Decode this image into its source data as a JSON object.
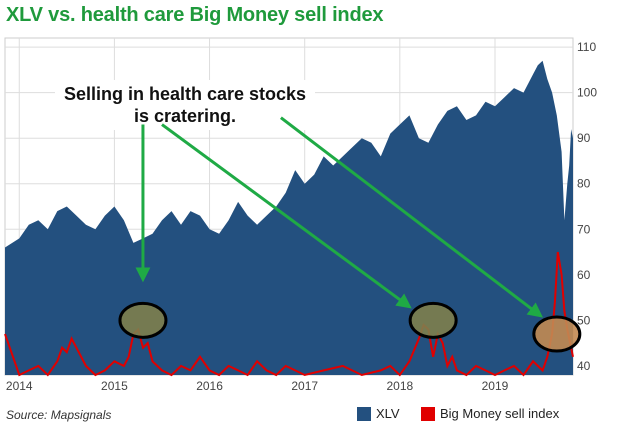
{
  "chart_data": {
    "type": "area",
    "title": "XLV vs. health care Big Money sell index",
    "source": "Source: Mapsignals",
    "annotation": "Selling in health care stocks is cratering.",
    "annotation_lines": [
      "Selling in health care stocks",
      "is cratering."
    ],
    "x_range": [
      2013.85,
      2019.82
    ],
    "x_ticks": [
      2014,
      2015,
      2016,
      2017,
      2018,
      2019
    ],
    "y_axis": {
      "position": "right",
      "ylim": [
        38,
        112
      ],
      "ticks": [
        40,
        50,
        60,
        70,
        80,
        90,
        100,
        110
      ]
    },
    "grid": true,
    "legend_position": "bottom-right",
    "series": [
      {
        "name": "XLV",
        "type": "area",
        "color": "#23507f",
        "x": [
          2013.85,
          2014.0,
          2014.1,
          2014.2,
          2014.3,
          2014.4,
          2014.5,
          2014.6,
          2014.7,
          2014.8,
          2014.9,
          2015.0,
          2015.1,
          2015.2,
          2015.3,
          2015.4,
          2015.5,
          2015.6,
          2015.7,
          2015.8,
          2015.9,
          2016.0,
          2016.1,
          2016.2,
          2016.3,
          2016.4,
          2016.5,
          2016.6,
          2016.7,
          2016.8,
          2016.9,
          2017.0,
          2017.1,
          2017.2,
          2017.3,
          2017.4,
          2017.5,
          2017.6,
          2017.7,
          2017.8,
          2017.9,
          2018.0,
          2018.1,
          2018.2,
          2018.3,
          2018.4,
          2018.5,
          2018.6,
          2018.7,
          2018.8,
          2018.9,
          2019.0,
          2019.1,
          2019.2,
          2019.3,
          2019.4,
          2019.45,
          2019.5,
          2019.55,
          2019.6,
          2019.65,
          2019.7,
          2019.73,
          2019.76,
          2019.78,
          2019.8,
          2019.82
        ],
        "values": [
          66,
          68,
          71,
          72,
          70,
          74,
          75,
          73,
          71,
          70,
          73,
          75,
          72,
          67,
          68,
          69,
          72,
          74,
          71,
          74,
          73,
          70,
          69,
          72,
          76,
          73,
          71,
          73,
          75,
          78,
          83,
          80,
          82,
          86,
          84,
          86,
          88,
          90,
          89,
          86,
          91,
          93,
          95,
          90,
          89,
          93,
          96,
          97,
          94,
          95,
          98,
          97,
          99,
          101,
          100,
          104,
          106,
          107,
          103,
          100,
          95,
          87,
          72,
          80,
          84,
          92,
          90
        ]
      },
      {
        "name": "Big Money sell index",
        "type": "line",
        "color": "#e00000",
        "x": [
          2013.85,
          2013.9,
          2014.0,
          2014.1,
          2014.2,
          2014.3,
          2014.4,
          2014.45,
          2014.5,
          2014.55,
          2014.6,
          2014.7,
          2014.8,
          2014.9,
          2015.0,
          2015.1,
          2015.15,
          2015.2,
          2015.25,
          2015.3,
          2015.35,
          2015.4,
          2015.5,
          2015.6,
          2015.7,
          2015.8,
          2015.9,
          2016.0,
          2016.1,
          2016.2,
          2016.3,
          2016.4,
          2016.5,
          2016.6,
          2016.7,
          2016.8,
          2016.9,
          2017.0,
          2017.2,
          2017.4,
          2017.6,
          2017.8,
          2017.9,
          2018.0,
          2018.1,
          2018.2,
          2018.25,
          2018.3,
          2018.35,
          2018.4,
          2018.45,
          2018.5,
          2018.55,
          2018.6,
          2018.7,
          2018.8,
          2018.9,
          2019.0,
          2019.1,
          2019.2,
          2019.3,
          2019.4,
          2019.5,
          2019.55,
          2019.6,
          2019.63,
          2019.66,
          2019.7,
          2019.73,
          2019.76,
          2019.8,
          2019.82
        ],
        "values": [
          47,
          44,
          38,
          39,
          40,
          38,
          41,
          44,
          43,
          46,
          44,
          40,
          38,
          39,
          41,
          40,
          42,
          47,
          48,
          44,
          45,
          41,
          39,
          38,
          40,
          39,
          42,
          39,
          38,
          40,
          39,
          38,
          41,
          39,
          38,
          40,
          39,
          38,
          39,
          40,
          38,
          39,
          40,
          38,
          41,
          46,
          49,
          48,
          42,
          47,
          45,
          40,
          42,
          39,
          38,
          40,
          39,
          38,
          39,
          40,
          38,
          41,
          39,
          42,
          47,
          54,
          65,
          60,
          52,
          48,
          44,
          42
        ]
      }
    ],
    "highlights": [
      {
        "x": 2015.3,
        "y": 50,
        "color": "#7e7e4c"
      },
      {
        "x": 2018.35,
        "y": 50,
        "color": "#7e7e4c"
      },
      {
        "x": 2019.65,
        "y": 47,
        "color": "#c28a52"
      }
    ],
    "arrows": [
      {
        "from": [
          2015.3,
          93
        ],
        "to": [
          2015.3,
          59
        ]
      },
      {
        "from": [
          2015.5,
          93
        ],
        "to": [
          2018.1,
          53
        ]
      },
      {
        "from": [
          2016.75,
          94.5
        ],
        "to": [
          2019.48,
          51
        ]
      }
    ]
  }
}
